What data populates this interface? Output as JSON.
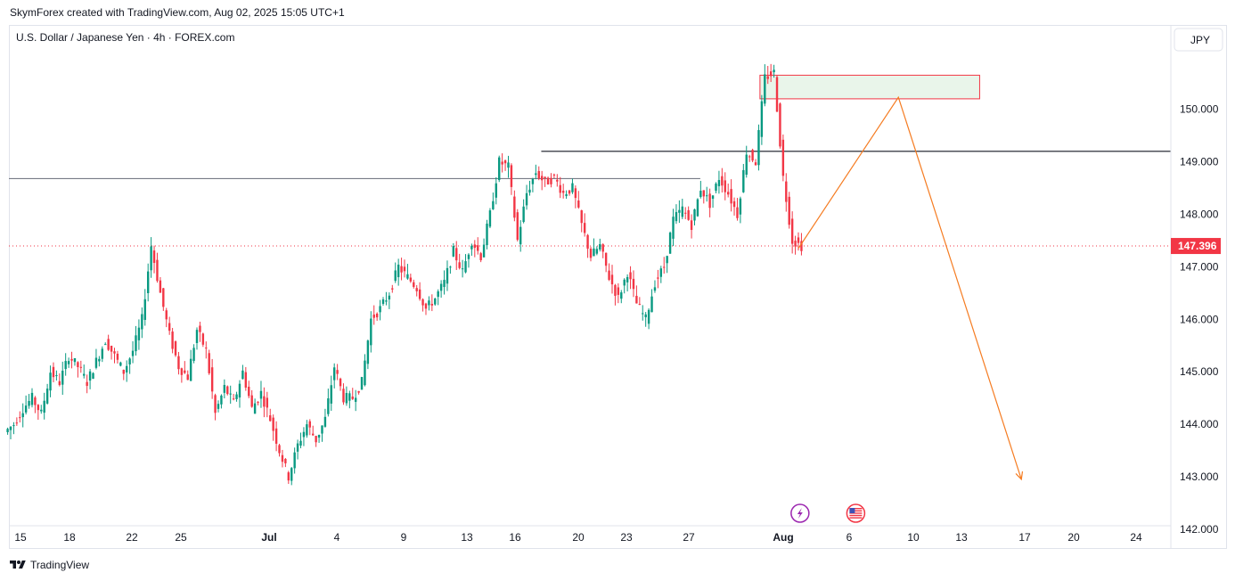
{
  "header": {
    "attribution": "SkymForex created with TradingView.com, Aug 02, 2025 15:05 UTC+1"
  },
  "footer": {
    "brand": "TradingView",
    "logo_icon": "tradingview-logo-icon"
  },
  "chart_data": {
    "type": "candlestick",
    "title": "U.S. Dollar / Japanese Yen · 4h · FOREX.com",
    "currency_label": "JPY",
    "y_ticks": [
      "150.000",
      "149.000",
      "148.000",
      "147.000",
      "146.000",
      "145.000",
      "144.000",
      "143.000",
      "142.000"
    ],
    "ylim": [
      141.97,
      151.2
    ],
    "x_ticks": [
      {
        "label": "15",
        "bold": false
      },
      {
        "label": "18",
        "bold": false
      },
      {
        "label": "22",
        "bold": false
      },
      {
        "label": "25",
        "bold": false
      },
      {
        "label": "Jul",
        "bold": true
      },
      {
        "label": "4",
        "bold": false
      },
      {
        "label": "9",
        "bold": false
      },
      {
        "label": "13",
        "bold": false
      },
      {
        "label": "16",
        "bold": false
      },
      {
        "label": "20",
        "bold": false
      },
      {
        "label": "23",
        "bold": false
      },
      {
        "label": "27",
        "bold": false
      },
      {
        "label": "Aug",
        "bold": true
      },
      {
        "label": "6",
        "bold": false
      },
      {
        "label": "10",
        "bold": false
      },
      {
        "label": "13",
        "bold": false
      },
      {
        "label": "17",
        "bold": false
      },
      {
        "label": "20",
        "bold": false
      },
      {
        "label": "24",
        "bold": false
      }
    ],
    "last_price": {
      "value": 147.396,
      "label": "147.396",
      "color": "#f23645"
    },
    "colors": {
      "up": "#089981",
      "down": "#f23645",
      "projection": "#f57c22"
    },
    "close_path": [
      144.0,
      144.3,
      144.5,
      144.2,
      145.0,
      144.8,
      145.3,
      145.1,
      144.8,
      145.2,
      145.6,
      145.3,
      145.0,
      145.4,
      146.0,
      147.4,
      146.5,
      145.7,
      145.1,
      144.9,
      145.8,
      145.4,
      144.2,
      144.7,
      144.4,
      145.0,
      144.3,
      144.6,
      144.1,
      143.5,
      143.0,
      143.6,
      144.0,
      143.7,
      144.1,
      145.1,
      144.5,
      144.5,
      144.8,
      146.0,
      146.2,
      146.5,
      147.0,
      146.8,
      146.6,
      146.2,
      146.4,
      146.7,
      147.3,
      146.9,
      147.5,
      147.2,
      148.0,
      149.0,
      148.9,
      147.5,
      148.4,
      148.8,
      148.6,
      148.7,
      148.4,
      148.5,
      147.8,
      147.2,
      147.4,
      146.8,
      146.4,
      146.9,
      146.3,
      146.0,
      146.7,
      147.0,
      147.9,
      148.1,
      147.8,
      148.5,
      148.2,
      148.7,
      148.4,
      148.0,
      149.2,
      149.0,
      150.6,
      150.7,
      148.7,
      147.5,
      147.396
    ],
    "range_box": {
      "from_index": 82,
      "width_days": 13.4,
      "top": 150.65,
      "bottom": 150.2
    },
    "horizontal_lines": [
      {
        "price": 148.68,
        "from_day": 0,
        "to_day": 42.3
      },
      {
        "price": 149.2,
        "from_day": 32.6,
        "to_day": "end"
      }
    ],
    "projection_path": [
      {
        "day_offset": 0,
        "price": 147.35
      },
      {
        "day_offset": 6.1,
        "price": 150.23
      },
      {
        "day_offset": 13.6,
        "price": 142.95
      }
    ],
    "event_markers": [
      {
        "icon": "lightning-icon",
        "day_offset": 0.1
      },
      {
        "icon": "us-flag-icon",
        "day_offset": 3.5
      }
    ]
  }
}
